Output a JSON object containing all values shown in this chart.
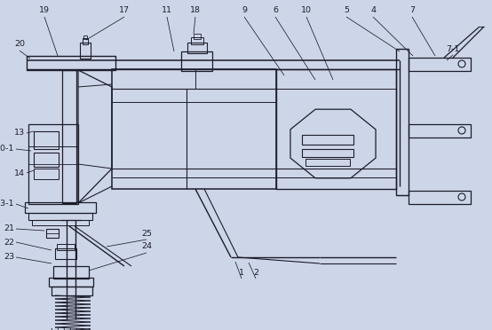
{
  "bg_color": "#cdd6e8",
  "line_color": "#1c1c2a",
  "fig_w": 5.54,
  "fig_h": 3.72,
  "dpi": 100
}
